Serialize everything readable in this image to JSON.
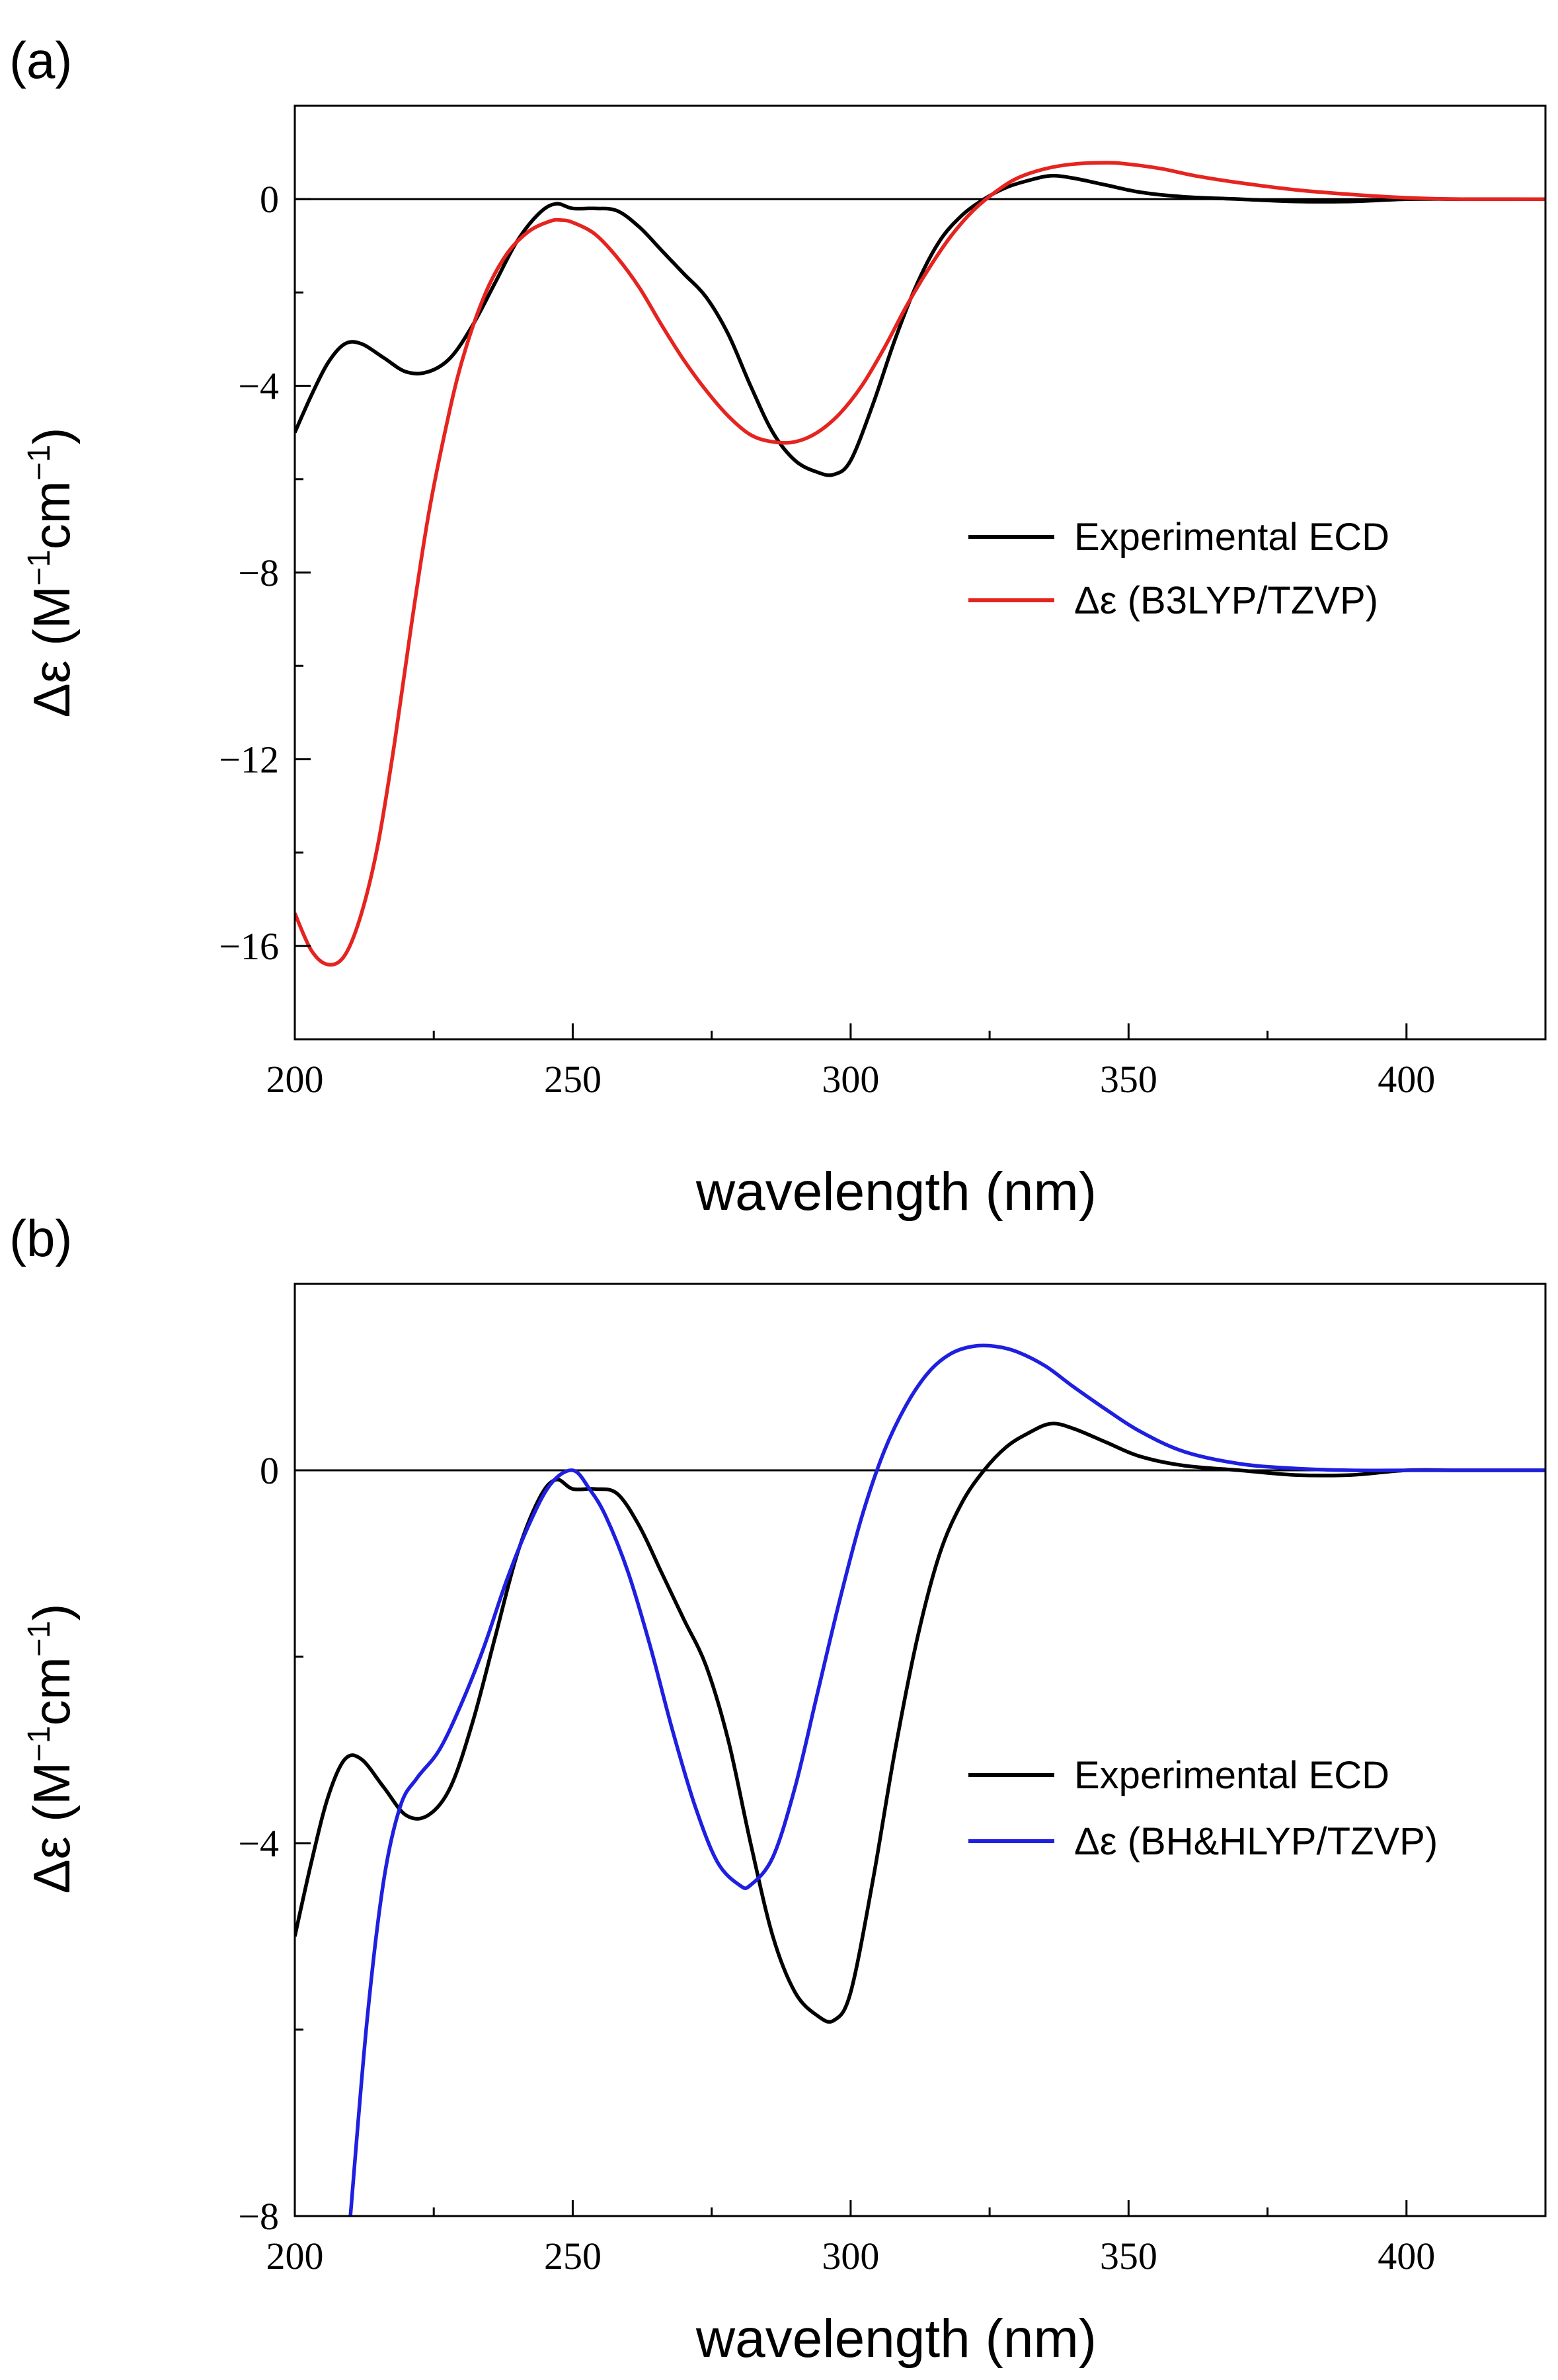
{
  "figure": {
    "description_free": true
  },
  "panels": [
    {
      "label": "(a)",
      "xlabel": "wavelength (nm)",
      "ylabel_prefix": "Δε (M",
      "ylabel_mid": "cm",
      "ylabel_suffix": ")",
      "ylabel_exp": "−1"
    },
    {
      "label": "(b)",
      "xlabel": "wavelength (nm)",
      "ylabel_prefix": "Δε (M",
      "ylabel_mid": "cm",
      "ylabel_suffix": ")",
      "ylabel_exp": "−1"
    }
  ],
  "chart_data": [
    {
      "type": "line",
      "panel": "(a)",
      "title": "",
      "xlabel": "wavelength (nm)",
      "ylabel": "Δε (M−1cm−1)",
      "xlim": [
        200,
        425
      ],
      "ylim": [
        -18,
        2
      ],
      "xticks": [
        200,
        250,
        300,
        350,
        400
      ],
      "yticks": [
        0,
        -4,
        -8,
        -12,
        -16
      ],
      "ytick_labels": [
        "0",
        "−4",
        "−8",
        "−12",
        "−16"
      ],
      "zero_line": true,
      "legend_position": "right-middle",
      "series": [
        {
          "name": "Experimental ECD",
          "color": "#000000",
          "x": [
            200,
            203,
            206,
            209,
            212,
            216,
            220,
            224,
            228,
            232,
            236,
            240,
            244,
            247,
            250,
            254,
            258,
            262,
            266,
            270,
            274,
            278,
            282,
            286,
            290,
            294,
            297,
            300,
            304,
            308,
            312,
            316,
            320,
            324,
            328,
            332,
            336,
            340,
            346,
            352,
            360,
            370,
            380,
            390,
            400,
            410,
            425
          ],
          "y": [
            -5.0,
            -4.2,
            -3.5,
            -3.1,
            -3.1,
            -3.4,
            -3.7,
            -3.7,
            -3.4,
            -2.7,
            -1.8,
            -0.9,
            -0.3,
            -0.1,
            -0.2,
            -0.2,
            -0.25,
            -0.6,
            -1.1,
            -1.6,
            -2.1,
            -2.9,
            -4.0,
            -5.0,
            -5.6,
            -5.85,
            -5.9,
            -5.6,
            -4.4,
            -3.0,
            -1.8,
            -0.9,
            -0.35,
            0.0,
            0.25,
            0.4,
            0.5,
            0.45,
            0.3,
            0.15,
            0.05,
            0.0,
            -0.05,
            -0.05,
            0.0,
            0.0,
            0.0
          ]
        },
        {
          "name": "Δε (B3LYP/TZVP)",
          "color": "#e52420",
          "x": [
            200,
            203,
            206,
            209,
            212,
            215,
            218,
            221,
            224,
            227,
            230,
            234,
            238,
            242,
            246,
            248,
            250,
            254,
            258,
            262,
            266,
            270,
            274,
            278,
            282,
            286,
            290,
            294,
            298,
            302,
            306,
            310,
            314,
            318,
            322,
            326,
            330,
            335,
            340,
            346,
            350,
            356,
            362,
            370,
            380,
            390,
            400,
            410,
            425
          ],
          "y": [
            -15.3,
            -16.1,
            -16.4,
            -16.2,
            -15.3,
            -13.8,
            -11.6,
            -9.1,
            -6.8,
            -5.0,
            -3.5,
            -2.1,
            -1.2,
            -0.7,
            -0.47,
            -0.45,
            -0.5,
            -0.75,
            -1.25,
            -1.9,
            -2.7,
            -3.45,
            -4.1,
            -4.65,
            -5.05,
            -5.2,
            -5.2,
            -5.0,
            -4.6,
            -4.0,
            -3.2,
            -2.3,
            -1.5,
            -0.8,
            -0.25,
            0.15,
            0.45,
            0.65,
            0.75,
            0.78,
            0.75,
            0.65,
            0.5,
            0.35,
            0.2,
            0.1,
            0.03,
            0.0,
            0.0
          ]
        }
      ]
    },
    {
      "type": "line",
      "panel": "(b)",
      "title": "",
      "xlabel": "wavelength (nm)",
      "ylabel": "Δε (M−1cm−1)",
      "xlim": [
        200,
        425
      ],
      "ylim": [
        -8,
        2
      ],
      "xticks": [
        200,
        250,
        300,
        350,
        400
      ],
      "yticks": [
        0,
        -4,
        -8
      ],
      "ytick_labels": [
        "0",
        "−4",
        "−8"
      ],
      "zero_line": true,
      "legend_position": "right-middle",
      "series": [
        {
          "name": "Experimental ECD",
          "color": "#000000",
          "x": [
            200,
            203,
            206,
            209,
            212,
            216,
            220,
            224,
            228,
            232,
            236,
            240,
            244,
            247,
            250,
            254,
            258,
            262,
            266,
            270,
            274,
            278,
            282,
            286,
            290,
            294,
            297,
            300,
            304,
            308,
            312,
            316,
            320,
            324,
            328,
            332,
            336,
            340,
            346,
            352,
            360,
            370,
            380,
            390,
            400,
            410,
            425
          ],
          "y": [
            -5.0,
            -4.2,
            -3.5,
            -3.1,
            -3.1,
            -3.4,
            -3.7,
            -3.7,
            -3.4,
            -2.7,
            -1.8,
            -0.9,
            -0.3,
            -0.1,
            -0.2,
            -0.2,
            -0.25,
            -0.6,
            -1.1,
            -1.6,
            -2.1,
            -2.9,
            -4.0,
            -5.0,
            -5.6,
            -5.85,
            -5.9,
            -5.6,
            -4.4,
            -3.0,
            -1.8,
            -0.9,
            -0.35,
            0.0,
            0.25,
            0.4,
            0.5,
            0.45,
            0.3,
            0.15,
            0.05,
            0.0,
            -0.05,
            -0.05,
            0.0,
            0.0,
            0.0
          ]
        },
        {
          "name": "Δε (BH&HLYP/TZVP)",
          "color": "#1f1fe0",
          "x": [
            210,
            213,
            216,
            219,
            222,
            226,
            230,
            234,
            238,
            242,
            246,
            250,
            253,
            256,
            260,
            264,
            268,
            272,
            276,
            280,
            282,
            286,
            290,
            294,
            298,
            302,
            306,
            310,
            314,
            318,
            322,
            326,
            330,
            335,
            340,
            346,
            352,
            360,
            370,
            380,
            390,
            400,
            410,
            425
          ],
          "y": [
            -8.0,
            -5.9,
            -4.4,
            -3.6,
            -3.3,
            -3.0,
            -2.5,
            -1.9,
            -1.2,
            -0.6,
            -0.15,
            0.0,
            -0.2,
            -0.5,
            -1.1,
            -1.9,
            -2.8,
            -3.6,
            -4.2,
            -4.45,
            -4.45,
            -4.15,
            -3.4,
            -2.4,
            -1.4,
            -0.5,
            0.2,
            0.7,
            1.05,
            1.25,
            1.33,
            1.33,
            1.27,
            1.12,
            0.9,
            0.65,
            0.42,
            0.2,
            0.07,
            0.02,
            0.0,
            0.0,
            0.0,
            0.0
          ]
        }
      ]
    }
  ]
}
